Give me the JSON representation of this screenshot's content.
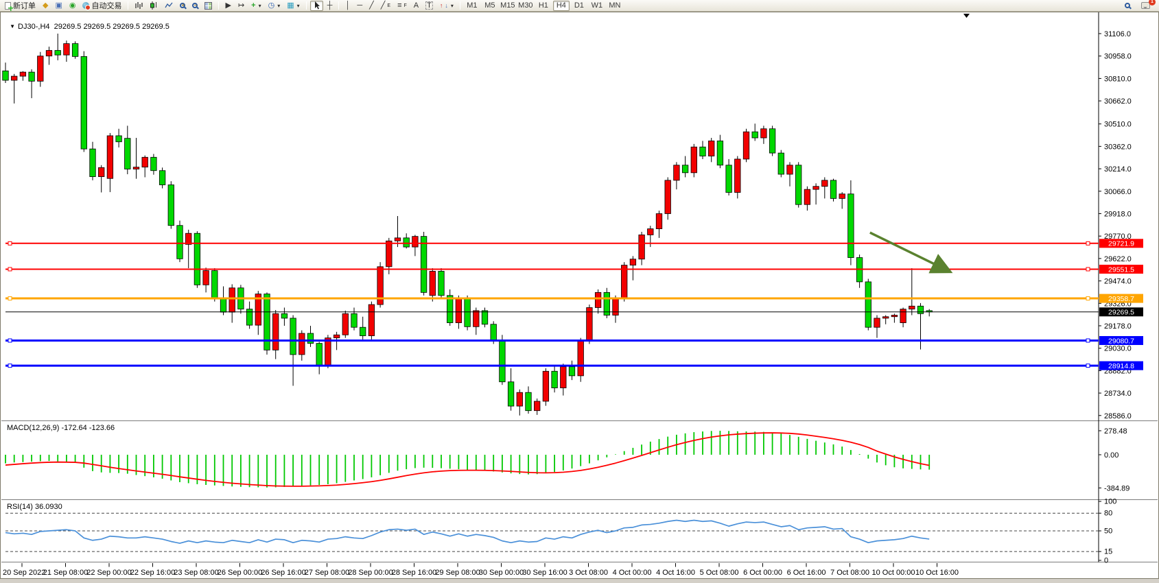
{
  "toolbar": {
    "new_order": "新订单",
    "auto_trading": "自动交易",
    "timeframes": [
      "M1",
      "M5",
      "M15",
      "M30",
      "H1",
      "H4",
      "D1",
      "W1",
      "MN"
    ],
    "active_timeframe": "H4",
    "notification_count": "1"
  },
  "icons": {
    "collapse": "▼",
    "styler": "◆",
    "depth_of_market": "▣",
    "signals": "◉",
    "zoom_in_plus": "+",
    "zoom_out_minus": "−",
    "autoscroll": "▶",
    "chart_shift": "↦",
    "indicators_plus": "+",
    "clock": "◷",
    "template": "▦",
    "dropdown": "▾",
    "crosshair": "┼",
    "vline": "│",
    "hline": "─",
    "trendline": "╱",
    "channel": "╱",
    "channel_sub": "E",
    "fibo": "≡",
    "fibo_sub": "F",
    "text_tool": "A",
    "label_tool": "T",
    "arrow_up": "↑",
    "arrow_down": "↓"
  },
  "chart": {
    "symbol_info": "DJ30-,H4  29269.5 29269.5 29269.5 29269.5"
  },
  "chart_data": [
    {
      "type": "candlestick",
      "title": "DJ30-,H4",
      "up_color": "#f20000",
      "down_color": "#00d800",
      "wick_color": "#000000",
      "x_labels": [
        "20 Sep 2022",
        "21 Sep 08:00",
        "22 Sep 00:00",
        "22 Sep 16:00",
        "23 Sep 08:00",
        "26 Sep 00:00",
        "26 Sep 16:00",
        "27 Sep 08:00",
        "28 Sep 00:00",
        "28 Sep 16:00",
        "29 Sep 08:00",
        "30 Sep 00:00",
        "30 Sep 16:00",
        "3 Oct 08:00",
        "4 Oct 00:00",
        "4 Oct 16:00",
        "5 Oct 08:00",
        "6 Oct 00:00",
        "6 Oct 16:00",
        "7 Oct 08:00",
        "10 Oct 00:00",
        "10 Oct 16:00"
      ],
      "y_ticks": [
        "31106.0",
        "30958.0",
        "30810.0",
        "30662.0",
        "30510.0",
        "30362.0",
        "30214.0",
        "30066.0",
        "29918.0",
        "29770.0",
        "29622.0",
        "29474.0",
        "29326.0",
        "29178.0",
        "29030.0",
        "28882.0",
        "28734.0",
        "28586.0"
      ],
      "hlines": [
        {
          "price": 29721.9,
          "label": "29721.9",
          "color": "#ff0000",
          "width": 2
        },
        {
          "price": 29551.5,
          "label": "29551.5",
          "color": "#ff0000",
          "width": 2
        },
        {
          "price": 29358.7,
          "label": "29358.7",
          "color": "#ffa500",
          "width": 3
        },
        {
          "price": 29080.7,
          "label": "29080.7",
          "color": "#0000ff",
          "width": 3
        },
        {
          "price": 28914.8,
          "label": "28914.8",
          "color": "#0000ff",
          "width": 3
        }
      ],
      "price_line": {
        "price": 29269.5,
        "label": "29269.5",
        "color": "#000000"
      },
      "arrow": {
        "from_bar": 99.2,
        "from_price": 29793,
        "to_bar": 108.2,
        "to_price": 29540,
        "color": "#5a822f"
      },
      "ohlc": [
        [
          30860,
          30915,
          30780,
          30798
        ],
        [
          30798,
          30840,
          30645,
          30825
        ],
        [
          30825,
          30858,
          30795,
          30852
        ],
        [
          30852,
          30870,
          30680,
          30792
        ],
        [
          30792,
          30985,
          30755,
          30958
        ],
        [
          30958,
          31020,
          30900,
          30995
        ],
        [
          30995,
          31106,
          30930,
          30965
        ],
        [
          30965,
          31060,
          30920,
          31040
        ],
        [
          31040,
          31055,
          30940,
          30955
        ],
        [
          30955,
          30990,
          30325,
          30345
        ],
        [
          30345,
          30392,
          30138,
          30162
        ],
        [
          30162,
          30238,
          30058,
          30222
        ],
        [
          30150,
          30450,
          30060,
          30432
        ],
        [
          30432,
          30478,
          30355,
          30392
        ],
        [
          30415,
          30498,
          30178,
          30212
        ],
        [
          30212,
          30418,
          30148,
          30225
        ],
        [
          30225,
          30302,
          30158,
          30290
        ],
        [
          30290,
          30312,
          30175,
          30202
        ],
        [
          30202,
          30222,
          30085,
          30108
        ],
        [
          30108,
          30132,
          29818,
          29840
        ],
        [
          29840,
          29872,
          29598,
          29620
        ],
        [
          29715,
          29812,
          29558,
          29788
        ],
        [
          29788,
          29802,
          29428,
          29448
        ],
        [
          29448,
          29562,
          29398,
          29542
        ],
        [
          29542,
          29558,
          29338,
          29358
        ],
        [
          29358,
          29438,
          29248,
          29268
        ],
        [
          29268,
          29452,
          29198,
          29428
        ],
        [
          29428,
          29448,
          29258,
          29288
        ],
        [
          29288,
          29338,
          29158,
          29182
        ],
        [
          29182,
          29408,
          29118,
          29388
        ],
        [
          29388,
          29398,
          28988,
          29018
        ],
        [
          29018,
          29282,
          28958,
          29258
        ],
        [
          29258,
          29298,
          29178,
          29228
        ],
        [
          29228,
          29248,
          28782,
          28988
        ],
        [
          28988,
          29148,
          28948,
          29128
        ],
        [
          29128,
          29178,
          29038,
          29062
        ],
        [
          29062,
          29072,
          28858,
          28918
        ],
        [
          28918,
          29118,
          28898,
          29098
        ],
        [
          29098,
          29138,
          29018,
          29118
        ],
        [
          29118,
          29278,
          29098,
          29258
        ],
        [
          29258,
          29298,
          29148,
          29168
        ],
        [
          29168,
          29238,
          29088,
          29112
        ],
        [
          29112,
          29338,
          29088,
          29318
        ],
        [
          29318,
          29598,
          29298,
          29568
        ],
        [
          29568,
          29758,
          29518,
          29738
        ],
        [
          29738,
          29902,
          29698,
          29758
        ],
        [
          29758,
          29788,
          29688,
          29698
        ],
        [
          29698,
          29778,
          29638,
          29768
        ],
        [
          29768,
          29798,
          29378,
          29398
        ],
        [
          29378,
          29558,
          29338,
          29538
        ],
        [
          29538,
          29558,
          29358,
          29378
        ],
        [
          29378,
          29418,
          29178,
          29198
        ],
        [
          29198,
          29378,
          29158,
          29358
        ],
        [
          29358,
          29378,
          29148,
          29172
        ],
        [
          29172,
          29298,
          29118,
          29278
        ],
        [
          29278,
          29298,
          29168,
          29188
        ],
        [
          29188,
          29208,
          29058,
          29078
        ],
        [
          29078,
          29118,
          28788,
          28808
        ],
        [
          28808,
          28898,
          28618,
          28648
        ],
        [
          28648,
          28758,
          28586,
          28738
        ],
        [
          28738,
          28778,
          28598,
          28618
        ],
        [
          28618,
          28698,
          28590,
          28680
        ],
        [
          28680,
          28898,
          28650,
          28878
        ],
        [
          28878,
          28918,
          28738,
          28768
        ],
        [
          28768,
          28928,
          28718,
          28908
        ],
        [
          28908,
          28948,
          28820,
          28848
        ],
        [
          28848,
          29098,
          28808,
          29082
        ],
        [
          29082,
          29318,
          29058,
          29298
        ],
        [
          29298,
          29418,
          29258,
          29398
        ],
        [
          29398,
          29428,
          29228,
          29248
        ],
        [
          29248,
          29378,
          29198,
          29358
        ],
        [
          29358,
          29598,
          29338,
          29578
        ],
        [
          29578,
          29638,
          29478,
          29618
        ],
        [
          29618,
          29798,
          29578,
          29778
        ],
        [
          29778,
          29838,
          29698,
          29818
        ],
        [
          29818,
          29938,
          29758,
          29918
        ],
        [
          29918,
          30158,
          29878,
          30138
        ],
        [
          30138,
          30258,
          30078,
          30238
        ],
        [
          30238,
          30298,
          30158,
          30188
        ],
        [
          30188,
          30378,
          30158,
          30358
        ],
        [
          30358,
          30398,
          30278,
          30298
        ],
        [
          30298,
          30418,
          30258,
          30398
        ],
        [
          30398,
          30438,
          30218,
          30238
        ],
        [
          30238,
          30278,
          30038,
          30058
        ],
        [
          30058,
          30298,
          30018,
          30278
        ],
        [
          30278,
          30478,
          30258,
          30458
        ],
        [
          30458,
          30512,
          30398,
          30418
        ],
        [
          30418,
          30498,
          30378,
          30478
        ],
        [
          30478,
          30498,
          30298,
          30318
        ],
        [
          30318,
          30338,
          30158,
          30178
        ],
        [
          30178,
          30258,
          30098,
          30238
        ],
        [
          30238,
          30258,
          29958,
          29978
        ],
        [
          29978,
          30098,
          29938,
          30078
        ],
        [
          30078,
          30118,
          29978,
          30098
        ],
        [
          30098,
          30158,
          30018,
          30138
        ],
        [
          30138,
          30148,
          29998,
          30018
        ],
        [
          30018,
          30060,
          29950,
          30048
        ],
        [
          30048,
          30138,
          29578,
          29628
        ],
        [
          29628,
          29648,
          29428,
          29468
        ],
        [
          29468,
          29488,
          29148,
          29168
        ],
        [
          29168,
          29248,
          29098,
          29228
        ],
        [
          29228,
          29248,
          29188,
          29238
        ],
        [
          29238,
          29258,
          29198,
          29248
        ],
        [
          29198,
          29298,
          29168,
          29288
        ],
        [
          29288,
          29558,
          29248,
          29308
        ],
        [
          29308,
          29328,
          29022,
          29258
        ],
        [
          29278,
          29288,
          29240,
          29269.5
        ]
      ]
    },
    {
      "type": "macd",
      "label": "MACD(12,26,9) -172.64 -123.66",
      "histogram_color": "#00c800",
      "signal_color": "#ff0000",
      "y_ticks": [
        {
          "label": "278.48",
          "value": 278.48
        },
        {
          "label": "0.00",
          "value": 0
        },
        {
          "label": "-384.89",
          "value": -384.89
        }
      ],
      "values": [
        -100,
        -90,
        -85,
        -80,
        -75,
        -72,
        -78,
        -85,
        -95,
        -150,
        -190,
        -205,
        -210,
        -212,
        -220,
        -235,
        -248,
        -262,
        -278,
        -298,
        -318,
        -330,
        -342,
        -350,
        -356,
        -362,
        -368,
        -372,
        -376,
        -378,
        -380,
        -378,
        -374,
        -370,
        -364,
        -356,
        -350,
        -342,
        -330,
        -315,
        -298,
        -282,
        -262,
        -238,
        -210,
        -185,
        -168,
        -155,
        -150,
        -152,
        -156,
        -162,
        -168,
        -175,
        -180,
        -186,
        -194,
        -205,
        -216,
        -224,
        -228,
        -225,
        -215,
        -200,
        -182,
        -160,
        -132,
        -100,
        -65,
        -30,
        5,
        42,
        80,
        118,
        152,
        182,
        210,
        232,
        248,
        262,
        270,
        276,
        278,
        276,
        272,
        270,
        268,
        265,
        258,
        246,
        230,
        208,
        184,
        162,
        142,
        120,
        95,
        55,
        8,
        -45,
        -90,
        -122,
        -145,
        -158,
        -164,
        -170,
        -172.64
      ],
      "signal": [
        -120,
        -112,
        -104,
        -97,
        -91,
        -87,
        -85,
        -86,
        -88,
        -97,
        -112,
        -128,
        -145,
        -160,
        -174,
        -188,
        -201,
        -214,
        -227,
        -241,
        -256,
        -270,
        -284,
        -297,
        -309,
        -320,
        -330,
        -338,
        -346,
        -352,
        -358,
        -362,
        -364,
        -365,
        -365,
        -363,
        -361,
        -357,
        -352,
        -344,
        -335,
        -324,
        -312,
        -297,
        -280,
        -261,
        -242,
        -225,
        -210,
        -198,
        -190,
        -184,
        -181,
        -180,
        -180,
        -181,
        -184,
        -188,
        -193,
        -199,
        -205,
        -209,
        -210,
        -208,
        -203,
        -194,
        -182,
        -165,
        -145,
        -122,
        -97,
        -69,
        -39,
        -8,
        24,
        56,
        87,
        116,
        142,
        166,
        187,
        205,
        219,
        231,
        239,
        245,
        250,
        253,
        254,
        252,
        248,
        240,
        229,
        215,
        201,
        185,
        167,
        145,
        118,
        85,
        42,
        8,
        -25,
        -54,
        -80,
        -103,
        -123.66
      ]
    },
    {
      "type": "rsi",
      "label": "RSI(14) 36.0930",
      "line_color": "#4a90d9",
      "levels": [
        80,
        50,
        15
      ],
      "y_ticks": [
        {
          "label": "100",
          "value": 100
        },
        {
          "label": "80",
          "value": 80
        },
        {
          "label": "50",
          "value": 50
        },
        {
          "label": "15",
          "value": 15
        },
        {
          "label": "0",
          "value": 0
        }
      ],
      "values": [
        47,
        45,
        46,
        44,
        49,
        50,
        51,
        52,
        50,
        38,
        34,
        36,
        41,
        40,
        38,
        38,
        40,
        38,
        36,
        32,
        29,
        33,
        30,
        33,
        31,
        30,
        34,
        32,
        30,
        35,
        31,
        36,
        35,
        30,
        34,
        33,
        31,
        36,
        37,
        40,
        38,
        37,
        42,
        48,
        52,
        53,
        51,
        53,
        44,
        48,
        45,
        41,
        45,
        41,
        44,
        42,
        39,
        33,
        30,
        33,
        31,
        32,
        38,
        36,
        40,
        38,
        44,
        48,
        51,
        47,
        50,
        55,
        56,
        60,
        61,
        63,
        66,
        68,
        66,
        68,
        66,
        67,
        63,
        58,
        62,
        65,
        64,
        65,
        61,
        57,
        59,
        52,
        55,
        56,
        57,
        53,
        54,
        40,
        36,
        30,
        33,
        34,
        35,
        37,
        41,
        38,
        36.09
      ]
    }
  ]
}
